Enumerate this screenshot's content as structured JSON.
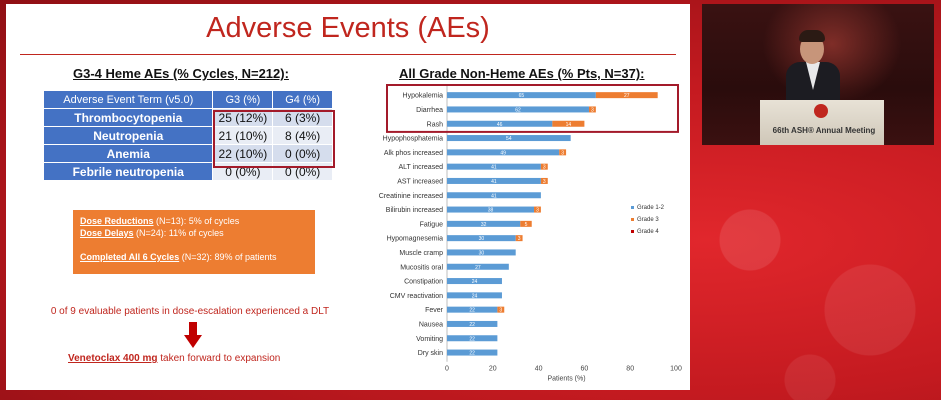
{
  "slide": {
    "title": "Adverse Events (AEs)"
  },
  "heme": {
    "header": "G3-4 Heme AEs (% Cycles, N=212):",
    "columns": [
      "Adverse Event Term (v5.0)",
      "G3 (%)",
      "G4 (%)"
    ],
    "rows": [
      {
        "term": "Thrombocytopenia",
        "g3": "25 (12%)",
        "g4": "6 (3%)"
      },
      {
        "term": "Neutropenia",
        "g3": "21 (10%)",
        "g4": "8 (4%)"
      },
      {
        "term": "Anemia",
        "g3": "22 (10%)",
        "g4": "0 (0%)"
      },
      {
        "term": "Febrile neutropenia",
        "g3": "0 (0%)",
        "g4": "0 (0%)"
      }
    ]
  },
  "dose": {
    "reductions_label": "Dose Reductions",
    "reductions_rest": " (N=13): 5% of cycles",
    "delays_label": "Dose Delays",
    "delays_rest": " (N=24): 11% of cycles",
    "completed_label": "Completed All 6 Cycles",
    "completed_rest": " (N=32): 89% of patients"
  },
  "dlt": {
    "text": "0 of 9 evaluable patients in dose-escalation experienced a DLT",
    "venet_label": "Venetoclax 400 mg",
    "venet_rest": " taken forward to expansion"
  },
  "nonheme": {
    "header": "All Grade Non-Heme AEs (% Pts, N=37):"
  },
  "chart_data": {
    "type": "bar",
    "orientation": "horizontal",
    "stacked": true,
    "categories": [
      "Hypokalemia",
      "Diarrhea",
      "Rash",
      "Hypophosphatemia",
      "Alk phos increased",
      "ALT increased",
      "AST increased",
      "Creatinine increased",
      "Bilirubin increased",
      "Fatigue",
      "Hypomagnesemia",
      "Muscle cramp",
      "Mucositis oral",
      "Constipation",
      "CMV reactivation",
      "Fever",
      "Nausea",
      "Vomiting",
      "Dry skin"
    ],
    "series": [
      {
        "name": "Grade 1-2",
        "color": "#5b9bd5",
        "values": [
          65,
          62,
          46,
          54,
          49,
          41,
          41,
          41,
          38,
          32,
          30,
          30,
          27,
          24,
          24,
          22,
          22,
          22,
          22
        ]
      },
      {
        "name": "Grade 3",
        "color": "#ed7d31",
        "values": [
          27,
          3,
          14,
          0,
          3,
          3,
          3,
          0,
          3,
          5,
          3,
          0,
          0,
          0,
          0,
          3,
          0,
          0,
          0
        ]
      },
      {
        "name": "Grade 4",
        "color": "#c00000",
        "values": [
          0,
          0,
          0,
          0,
          0,
          0,
          0,
          0,
          0,
          0,
          0,
          0,
          0,
          0,
          0,
          0,
          0,
          0,
          0
        ]
      }
    ],
    "bar_labels": [
      [
        "65",
        "27"
      ],
      [
        "62",
        "3"
      ],
      [
        "46",
        "14"
      ],
      [
        "54",
        ""
      ],
      [
        "49",
        "3"
      ],
      [
        "41",
        "3"
      ],
      [
        "41",
        "3"
      ],
      [
        "41",
        ""
      ],
      [
        "38",
        "3"
      ],
      [
        "32",
        "5"
      ],
      [
        "30",
        "3"
      ],
      [
        "30",
        ""
      ],
      [
        "27",
        ""
      ],
      [
        "24",
        ""
      ],
      [
        "24",
        ""
      ],
      [
        "22",
        "3"
      ],
      [
        "22",
        ""
      ],
      [
        "22",
        ""
      ],
      [
        "22",
        ""
      ]
    ],
    "xlabel": "Patients (%)",
    "xlim": [
      0,
      100
    ],
    "xticks": [
      "0",
      "20",
      "40",
      "60",
      "80",
      "100"
    ],
    "legend": "right",
    "highlighted_categories": [
      "Hypokalemia",
      "Diarrhea",
      "Rash"
    ]
  },
  "video": {
    "podium_text": "66th ASH® Annual Meeting"
  }
}
